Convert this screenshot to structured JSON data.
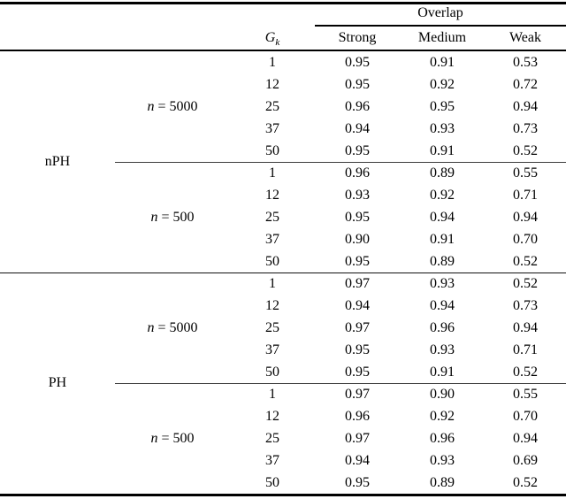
{
  "table": {
    "span_header": "Overlap",
    "columns": {
      "gk_base": "G",
      "gk_sub": "k",
      "overlap": [
        "Strong",
        "Medium",
        "Weak"
      ]
    },
    "groups": [
      {
        "label": "nPH",
        "subgroups": [
          {
            "var": "n",
            "rest": " = 5000",
            "rows": [
              [
                "1",
                "0.95",
                "0.91",
                "0.53"
              ],
              [
                "12",
                "0.95",
                "0.92",
                "0.72"
              ],
              [
                "25",
                "0.96",
                "0.95",
                "0.94"
              ],
              [
                "37",
                "0.94",
                "0.93",
                "0.73"
              ],
              [
                "50",
                "0.95",
                "0.91",
                "0.52"
              ]
            ]
          },
          {
            "var": "n",
            "rest": " = 500",
            "rows": [
              [
                "1",
                "0.96",
                "0.89",
                "0.55"
              ],
              [
                "12",
                "0.93",
                "0.92",
                "0.71"
              ],
              [
                "25",
                "0.95",
                "0.94",
                "0.94"
              ],
              [
                "37",
                "0.90",
                "0.91",
                "0.70"
              ],
              [
                "50",
                "0.95",
                "0.89",
                "0.52"
              ]
            ]
          }
        ]
      },
      {
        "label": "PH",
        "subgroups": [
          {
            "var": "n",
            "rest": " = 5000",
            "rows": [
              [
                "1",
                "0.97",
                "0.93",
                "0.52"
              ],
              [
                "12",
                "0.94",
                "0.94",
                "0.73"
              ],
              [
                "25",
                "0.97",
                "0.96",
                "0.94"
              ],
              [
                "37",
                "0.95",
                "0.93",
                "0.71"
              ],
              [
                "50",
                "0.95",
                "0.91",
                "0.52"
              ]
            ]
          },
          {
            "var": "n",
            "rest": " = 500",
            "rows": [
              [
                "1",
                "0.97",
                "0.90",
                "0.55"
              ],
              [
                "12",
                "0.96",
                "0.92",
                "0.70"
              ],
              [
                "25",
                "0.97",
                "0.96",
                "0.94"
              ],
              [
                "37",
                "0.94",
                "0.93",
                "0.69"
              ],
              [
                "50",
                "0.95",
                "0.89",
                "0.52"
              ]
            ]
          }
        ]
      }
    ]
  }
}
